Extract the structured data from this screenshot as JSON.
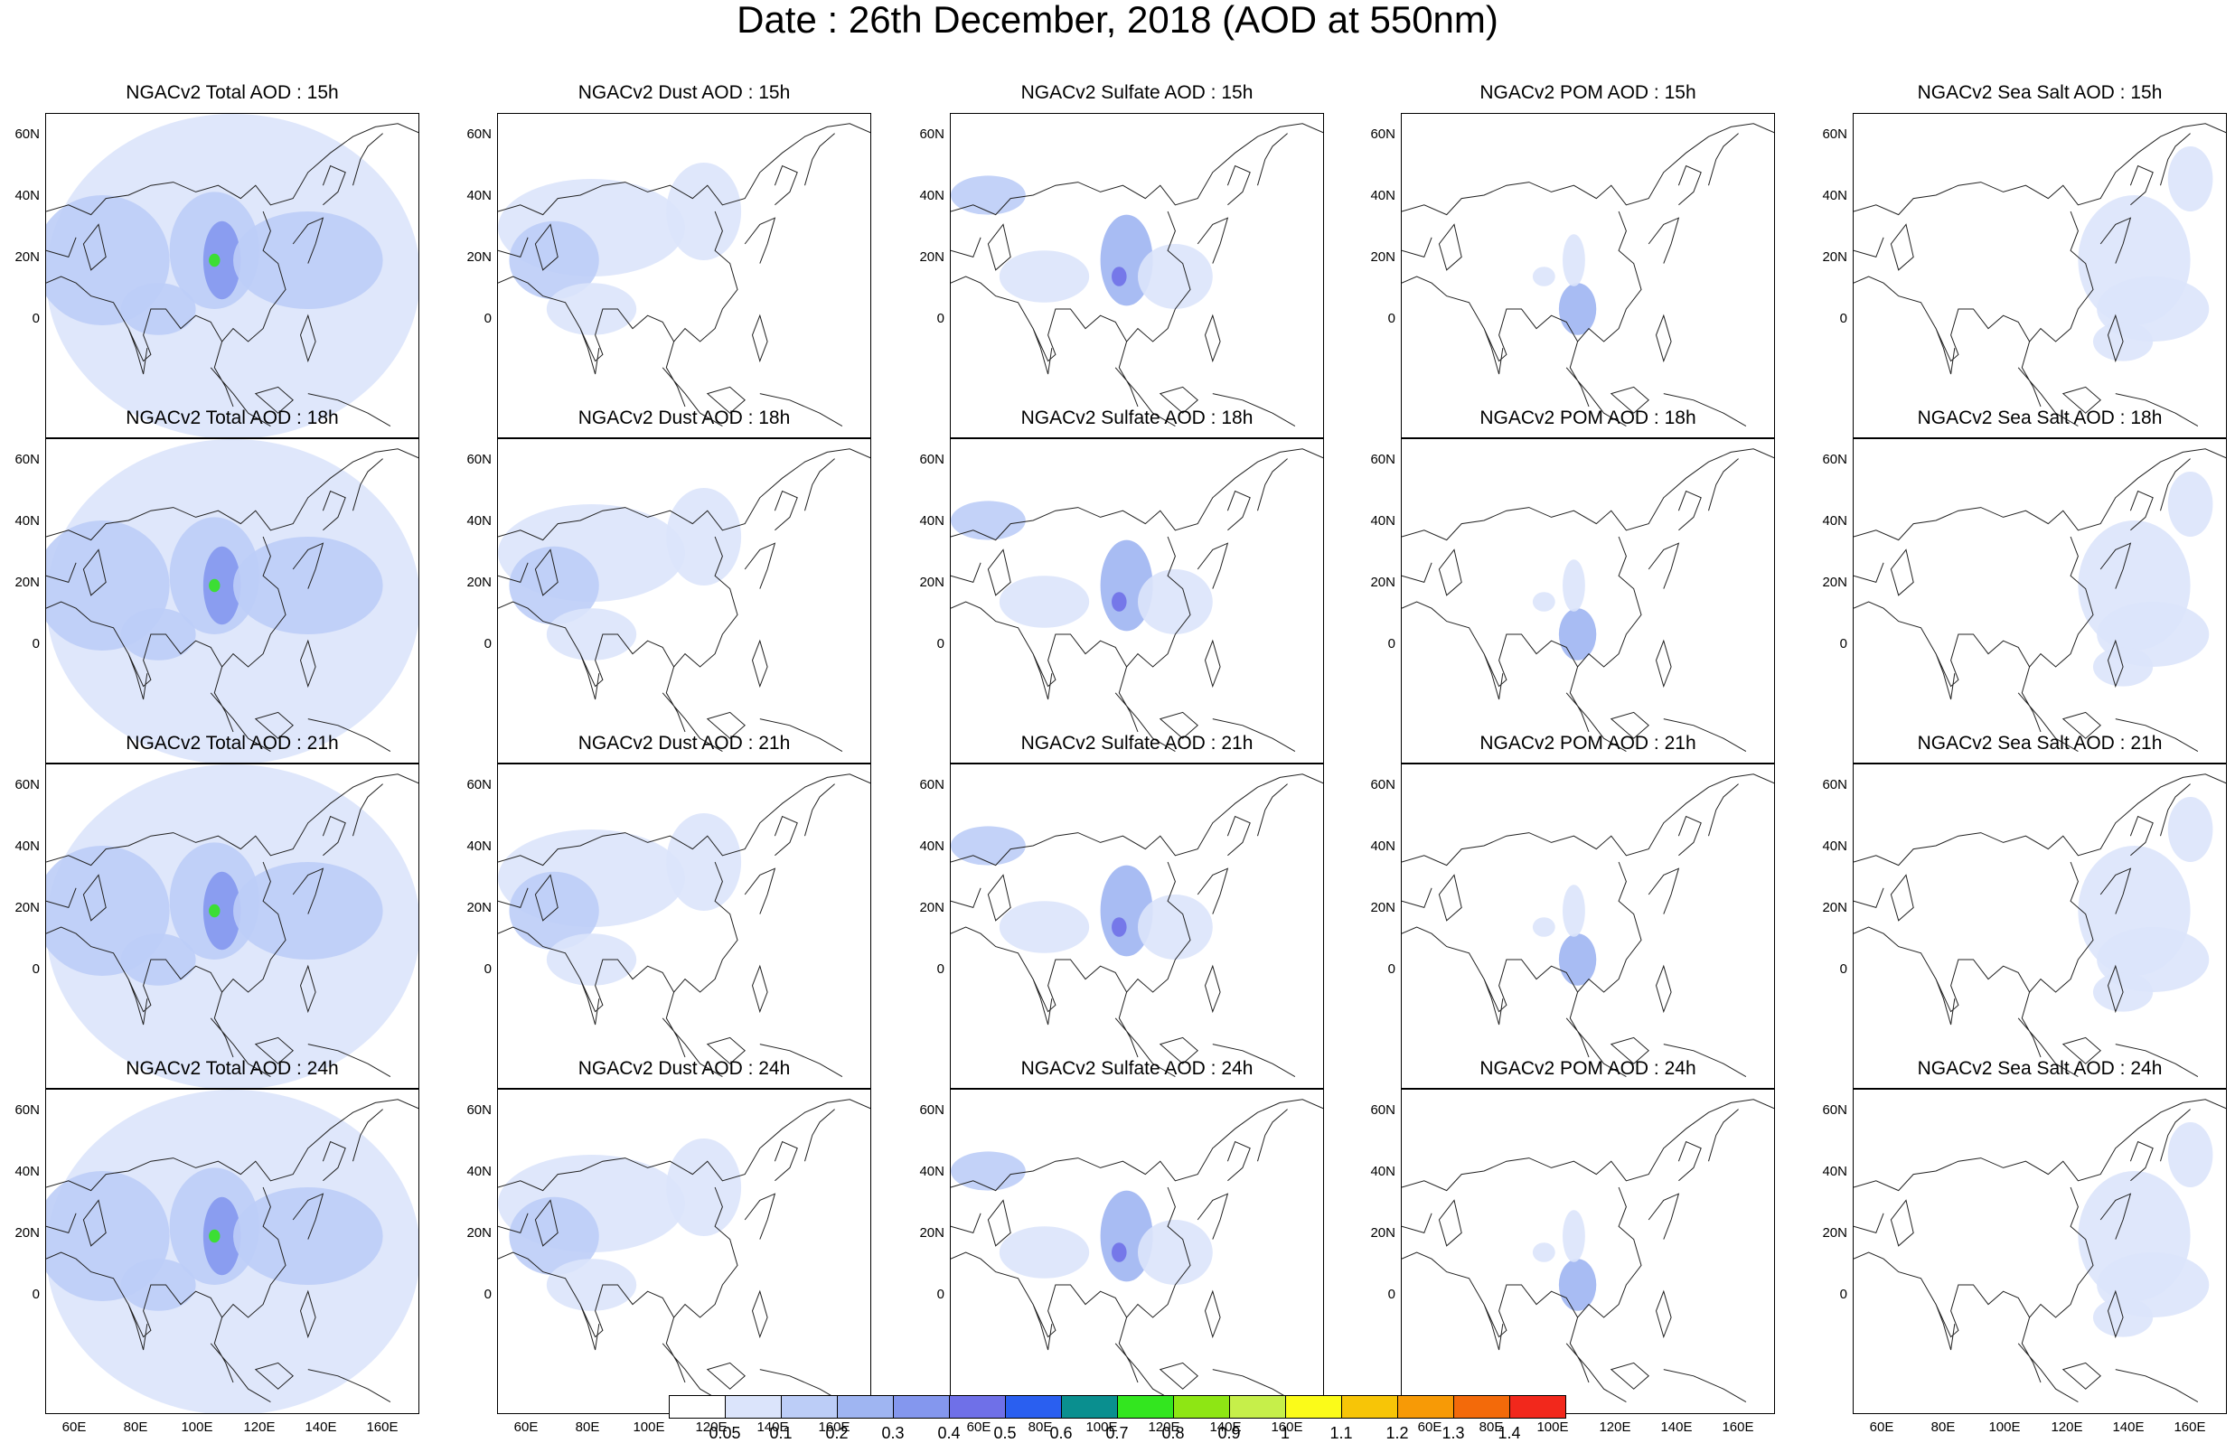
{
  "title": "Date : 26th December, 2018 (AOD at 550nm)",
  "panels": [
    [
      "NGACv2 Total AOD : 15h",
      "NGACv2 Dust AOD : 15h",
      "NGACv2 Sulfate AOD : 15h",
      "NGACv2 POM AOD : 15h",
      "NGACv2 Sea Salt AOD : 15h"
    ],
    [
      "NGACv2 Total AOD : 18h",
      "NGACv2 Dust AOD : 18h",
      "NGACv2 Sulfate AOD : 18h",
      "NGACv2 POM AOD : 18h",
      "NGACv2 Sea Salt AOD : 18h"
    ],
    [
      "NGACv2 Total AOD : 21h",
      "NGACv2 Dust AOD : 21h",
      "NGACv2 Sulfate AOD : 21h",
      "NGACv2 POM AOD : 21h",
      "NGACv2 Sea Salt AOD : 21h"
    ],
    [
      "NGACv2 Total AOD : 24h",
      "NGACv2 Dust AOD : 24h",
      "NGACv2 Sulfate AOD : 24h",
      "NGACv2 POM AOD : 24h",
      "NGACv2 Sea Salt  AOD : 24h"
    ]
  ],
  "lat_ticks": [
    "60N",
    "40N",
    "20N",
    "0"
  ],
  "lon_ticks": [
    "60E",
    "80E",
    "100E",
    "120E",
    "140E",
    "160E"
  ],
  "colorbar": {
    "labels": [
      "0.05",
      "0.1",
      "0.2",
      "0.3",
      "0.4",
      "0.5",
      "0.6",
      "0.7",
      "0.8",
      "0.9",
      "1",
      "1.1",
      "1.2",
      "1.3",
      "1.4"
    ],
    "colors": [
      "#ffffff",
      "#dbe4fb",
      "#bccdf7",
      "#9fb5f2",
      "#8497ee",
      "#6f70e8",
      "#2a5ff0",
      "#0a8f8f",
      "#33e61f",
      "#8ee614",
      "#c6ef4a",
      "#fbfb19",
      "#f7c507",
      "#f79a06",
      "#f36a0a",
      "#f2281c"
    ]
  }
}
